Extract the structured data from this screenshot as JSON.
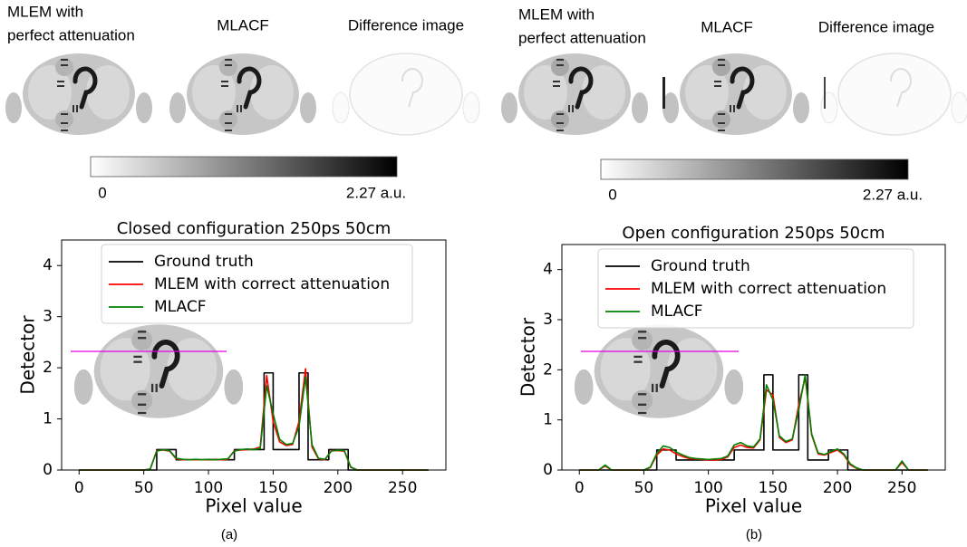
{
  "images": {
    "panels": [
      {
        "title": [
          "MLEM  with",
          "perfect attenuation"
        ]
      },
      {
        "title": "MLACF"
      },
      {
        "title": "Difference image"
      },
      {
        "title": [
          "MLEM  with",
          "perfect attenuation"
        ]
      },
      {
        "title": "MLACF"
      },
      {
        "title": "Difference image"
      }
    ],
    "colorbars": [
      {
        "min_label": "0",
        "max_label": "2.27 a.u."
      },
      {
        "min_label": "0",
        "max_label": "2.27 a.u."
      }
    ]
  },
  "chart_data": [
    {
      "type": "line",
      "title": "Closed configuration 250ps 50cm",
      "xlabel": "Pixel value",
      "ylabel": "Detector",
      "caption": "(a)",
      "xlim": [
        -13.5,
        283.5
      ],
      "ylim": [
        0,
        4.5
      ],
      "xticks": [
        0,
        50,
        100,
        150,
        200,
        250
      ],
      "yticks": [
        0,
        1,
        2,
        3,
        4
      ],
      "legend": "upper center",
      "series": [
        {
          "name": "Ground truth",
          "color": "#000000",
          "x": [
            0,
            60,
            60,
            75,
            75,
            120,
            120,
            143,
            143,
            150,
            150,
            170,
            170,
            177,
            177,
            193,
            193,
            208,
            208,
            270
          ],
          "values": [
            0,
            0,
            0.4,
            0.4,
            0.2,
            0.2,
            0.4,
            0.4,
            1.9,
            1.9,
            0.4,
            0.4,
            1.9,
            1.9,
            0.2,
            0.2,
            0.4,
            0.4,
            0,
            0
          ]
        },
        {
          "name": "MLEM with correct attenuation",
          "color": "#ff0000",
          "x": [
            0,
            5,
            10,
            15,
            20,
            25,
            30,
            35,
            40,
            45,
            50,
            55,
            60,
            65,
            70,
            75,
            80,
            85,
            90,
            95,
            100,
            105,
            110,
            115,
            120,
            125,
            130,
            135,
            140,
            145,
            150,
            155,
            160,
            165,
            170,
            175,
            180,
            185,
            190,
            195,
            200,
            205,
            210,
            215,
            220,
            225,
            230,
            235,
            240,
            245,
            250,
            255,
            260,
            265,
            270
          ],
          "values": [
            0,
            0,
            0,
            0,
            0,
            0,
            0,
            0,
            0,
            0,
            0,
            0.02,
            0.38,
            0.39,
            0.37,
            0.22,
            0.2,
            0.2,
            0.2,
            0.2,
            0.2,
            0.21,
            0.2,
            0.21,
            0.38,
            0.39,
            0.4,
            0.41,
            0.45,
            1.85,
            0.95,
            0.55,
            0.48,
            0.5,
            0.95,
            1.98,
            0.45,
            0.22,
            0.2,
            0.38,
            0.38,
            0.37,
            0.05,
            0,
            0,
            0,
            0,
            0,
            0,
            0,
            0,
            0,
            0,
            0,
            0
          ]
        },
        {
          "name": "MLACF",
          "color": "#008000",
          "x": [
            0,
            5,
            10,
            15,
            20,
            25,
            30,
            35,
            40,
            45,
            50,
            55,
            60,
            65,
            70,
            75,
            80,
            85,
            90,
            95,
            100,
            105,
            110,
            115,
            120,
            125,
            130,
            135,
            140,
            145,
            150,
            155,
            160,
            165,
            170,
            175,
            180,
            185,
            190,
            195,
            200,
            205,
            210,
            215,
            220,
            225,
            230,
            235,
            240,
            245,
            250,
            255,
            260,
            265,
            270
          ],
          "values": [
            0,
            0,
            0,
            0,
            0,
            0,
            0,
            0,
            0,
            0,
            0,
            0.02,
            0.37,
            0.4,
            0.38,
            0.23,
            0.21,
            0.2,
            0.21,
            0.2,
            0.21,
            0.2,
            0.21,
            0.22,
            0.37,
            0.4,
            0.41,
            0.4,
            0.42,
            1.65,
            1.1,
            0.6,
            0.5,
            0.52,
            0.85,
            1.82,
            0.5,
            0.23,
            0.21,
            0.37,
            0.39,
            0.38,
            0.06,
            0,
            0,
            0,
            0,
            0,
            0,
            0,
            0,
            0,
            0,
            0,
            0
          ]
        }
      ]
    },
    {
      "type": "line",
      "title": "Open configuration 250ps 50cm",
      "xlabel": "Pixel value",
      "ylabel": "Detector",
      "caption": "(b)",
      "xlim": [
        -13.5,
        283.5
      ],
      "ylim": [
        0,
        4.5
      ],
      "xticks": [
        0,
        50,
        100,
        150,
        200,
        250
      ],
      "yticks": [
        0,
        1,
        2,
        3,
        4
      ],
      "legend": "upper center",
      "series": [
        {
          "name": "Ground truth",
          "color": "#000000",
          "x": [
            0,
            60,
            60,
            75,
            75,
            120,
            120,
            143,
            143,
            150,
            150,
            170,
            170,
            177,
            177,
            193,
            193,
            208,
            208,
            270
          ],
          "values": [
            0,
            0,
            0.4,
            0.4,
            0.2,
            0.2,
            0.4,
            0.4,
            1.9,
            1.9,
            0.4,
            0.4,
            1.9,
            1.9,
            0.2,
            0.2,
            0.4,
            0.4,
            0,
            0
          ]
        },
        {
          "name": "MLEM with correct attenuation",
          "color": "#ff0000",
          "x": [
            0,
            5,
            10,
            15,
            20,
            25,
            30,
            35,
            40,
            45,
            50,
            55,
            60,
            65,
            70,
            75,
            80,
            85,
            90,
            95,
            100,
            105,
            110,
            115,
            120,
            125,
            130,
            135,
            140,
            145,
            150,
            155,
            160,
            165,
            170,
            175,
            180,
            185,
            190,
            195,
            200,
            205,
            210,
            215,
            220,
            225,
            230,
            235,
            240,
            245,
            250,
            255,
            260,
            265,
            270
          ],
          "values": [
            0,
            0,
            0,
            0,
            0.08,
            0,
            0,
            0,
            0,
            0,
            0,
            0.05,
            0.3,
            0.42,
            0.4,
            0.32,
            0.27,
            0.23,
            0.22,
            0.21,
            0.2,
            0.2,
            0.21,
            0.26,
            0.45,
            0.5,
            0.45,
            0.44,
            0.6,
            1.6,
            1.5,
            0.65,
            0.55,
            0.6,
            1.3,
            1.85,
            0.7,
            0.32,
            0.3,
            0.35,
            0.4,
            0.3,
            0.1,
            0.03,
            0,
            0,
            0,
            0,
            0,
            0,
            0.15,
            0,
            0,
            0,
            0
          ]
        },
        {
          "name": "MLACF",
          "color": "#008000",
          "x": [
            0,
            5,
            10,
            15,
            20,
            25,
            30,
            35,
            40,
            45,
            50,
            55,
            60,
            65,
            70,
            75,
            80,
            85,
            90,
            95,
            100,
            105,
            110,
            115,
            120,
            125,
            130,
            135,
            140,
            145,
            150,
            155,
            160,
            165,
            170,
            175,
            180,
            185,
            190,
            195,
            200,
            205,
            210,
            215,
            220,
            225,
            230,
            235,
            240,
            245,
            250,
            255,
            260,
            265,
            270
          ],
          "values": [
            0,
            0,
            0,
            0,
            0.1,
            0,
            0,
            0,
            0,
            0,
            0,
            0.06,
            0.33,
            0.48,
            0.45,
            0.36,
            0.3,
            0.25,
            0.23,
            0.22,
            0.21,
            0.22,
            0.23,
            0.28,
            0.5,
            0.55,
            0.48,
            0.46,
            0.62,
            1.7,
            1.4,
            0.68,
            0.57,
            0.62,
            1.2,
            1.9,
            0.72,
            0.34,
            0.31,
            0.37,
            0.42,
            0.32,
            0.12,
            0.04,
            0,
            0,
            0,
            0,
            0,
            0,
            0.18,
            0,
            0,
            0,
            0
          ]
        }
      ]
    }
  ]
}
